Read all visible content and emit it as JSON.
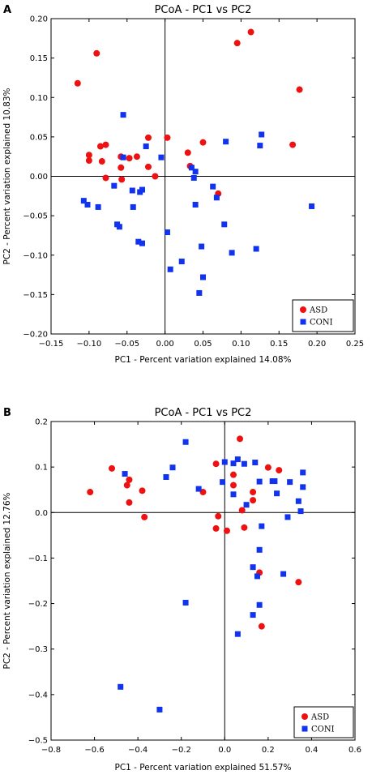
{
  "chart_data": [
    {
      "panel": "A",
      "type": "scatter",
      "title": "PCoA - PC1 vs PC2",
      "xlabel": "PC1 - Percent variation explained 14.08%",
      "ylabel": "PC2 - Percent variation explained 10.83%",
      "xlim": [
        -0.15,
        0.25
      ],
      "ylim": [
        -0.2,
        0.2
      ],
      "xticks": [
        "−0.15",
        "−0.10",
        "−0.05",
        "0.00",
        "0.05",
        "0.10",
        "0.15",
        "0.20",
        "0.25"
      ],
      "yticks": [
        "0.20",
        "0.15",
        "0.10",
        "0.05",
        "0.00",
        "−0.05",
        "−0.10",
        "−0.15",
        "−0.20"
      ],
      "legend_position": "bottom-right",
      "series": [
        {
          "name": "ASD",
          "marker": "circle",
          "color": "#ee1111",
          "points": [
            [
              -0.115,
              0.118
            ],
            [
              -0.09,
              0.156
            ],
            [
              -0.1,
              0.027
            ],
            [
              -0.1,
              0.02
            ],
            [
              -0.085,
              0.038
            ],
            [
              -0.078,
              0.04
            ],
            [
              -0.083,
              0.019
            ],
            [
              -0.078,
              -0.002
            ],
            [
              -0.058,
              0.025
            ],
            [
              -0.058,
              0.011
            ],
            [
              -0.057,
              -0.004
            ],
            [
              -0.047,
              0.023
            ],
            [
              -0.037,
              0.025
            ],
            [
              -0.022,
              0.049
            ],
            [
              -0.022,
              0.012
            ],
            [
              -0.013,
              0.0
            ],
            [
              0.003,
              0.049
            ],
            [
              0.03,
              0.03
            ],
            [
              0.033,
              0.013
            ],
            [
              0.05,
              0.043
            ],
            [
              0.07,
              -0.022
            ],
            [
              0.095,
              0.169
            ],
            [
              0.113,
              0.183
            ],
            [
              0.168,
              0.04
            ],
            [
              0.177,
              0.11
            ]
          ]
        },
        {
          "name": "CONI",
          "marker": "square",
          "color": "#1133ee",
          "points": [
            [
              -0.107,
              -0.031
            ],
            [
              -0.102,
              -0.036
            ],
            [
              -0.088,
              -0.039
            ],
            [
              -0.067,
              -0.012
            ],
            [
              -0.063,
              -0.061
            ],
            [
              -0.06,
              -0.064
            ],
            [
              -0.055,
              0.078
            ],
            [
              -0.055,
              0.024
            ],
            [
              -0.043,
              -0.018
            ],
            [
              -0.042,
              -0.039
            ],
            [
              -0.033,
              -0.02
            ],
            [
              -0.03,
              -0.017
            ],
            [
              -0.035,
              -0.083
            ],
            [
              -0.03,
              -0.085
            ],
            [
              -0.025,
              0.038
            ],
            [
              -0.005,
              0.024
            ],
            [
              0.003,
              -0.071
            ],
            [
              0.007,
              -0.118
            ],
            [
              0.022,
              -0.108
            ],
            [
              0.035,
              0.011
            ],
            [
              0.038,
              -0.002
            ],
            [
              0.04,
              0.006
            ],
            [
              0.04,
              -0.036
            ],
            [
              0.045,
              -0.148
            ],
            [
              0.048,
              -0.089
            ],
            [
              0.05,
              -0.128
            ],
            [
              0.063,
              -0.013
            ],
            [
              0.068,
              -0.027
            ],
            [
              0.078,
              -0.061
            ],
            [
              0.08,
              0.044
            ],
            [
              0.088,
              -0.097
            ],
            [
              0.12,
              -0.092
            ],
            [
              0.125,
              0.039
            ],
            [
              0.127,
              0.053
            ],
            [
              0.193,
              -0.038
            ]
          ]
        }
      ]
    },
    {
      "panel": "B",
      "type": "scatter",
      "title": "PCoA - PC1 vs PC2",
      "xlabel": "PC1 - Percent variation explained 51.57%",
      "ylabel": "PC2 - Percent variation explained 12.76%",
      "xlim": [
        -0.8,
        0.6
      ],
      "ylim": [
        -0.5,
        0.2
      ],
      "xticks": [
        "−0.8",
        "−0.6",
        "−0.4",
        "−0.2",
        "0.0",
        "0.2",
        "0.4",
        "0.6"
      ],
      "yticks": [
        "0.2",
        "0.1",
        "0.0",
        "−0.1",
        "−0.2",
        "−0.3",
        "−0.4",
        "−0.5"
      ],
      "legend_position": "bottom-right",
      "series": [
        {
          "name": "ASD",
          "marker": "circle",
          "color": "#ee1111",
          "points": [
            [
              -0.62,
              0.045
            ],
            [
              -0.52,
              0.097
            ],
            [
              -0.45,
              0.06
            ],
            [
              -0.44,
              0.072
            ],
            [
              -0.44,
              0.022
            ],
            [
              -0.38,
              0.048
            ],
            [
              -0.37,
              -0.01
            ],
            [
              -0.1,
              0.045
            ],
            [
              -0.04,
              0.107
            ],
            [
              -0.03,
              -0.008
            ],
            [
              -0.04,
              -0.035
            ],
            [
              0.01,
              -0.04
            ],
            [
              0.04,
              0.083
            ],
            [
              0.04,
              0.06
            ],
            [
              0.07,
              0.162
            ],
            [
              0.08,
              0.005
            ],
            [
              0.09,
              -0.033
            ],
            [
              0.13,
              0.045
            ],
            [
              0.13,
              0.027
            ],
            [
              0.16,
              -0.132
            ],
            [
              0.17,
              -0.25
            ],
            [
              0.2,
              0.099
            ],
            [
              0.25,
              0.093
            ],
            [
              0.34,
              -0.153
            ]
          ]
        },
        {
          "name": "CONI",
          "marker": "square",
          "color": "#1133ee",
          "points": [
            [
              -0.46,
              0.085
            ],
            [
              -0.48,
              -0.383
            ],
            [
              -0.3,
              -0.433
            ],
            [
              -0.27,
              0.078
            ],
            [
              -0.24,
              0.099
            ],
            [
              -0.18,
              0.155
            ],
            [
              -0.18,
              -0.198
            ],
            [
              -0.12,
              0.052
            ],
            [
              -0.01,
              0.067
            ],
            [
              0.0,
              0.111
            ],
            [
              0.04,
              0.108
            ],
            [
              0.04,
              0.04
            ],
            [
              0.06,
              0.117
            ],
            [
              0.06,
              -0.267
            ],
            [
              0.09,
              0.107
            ],
            [
              0.1,
              0.017
            ],
            [
              0.13,
              -0.12
            ],
            [
              0.14,
              0.11
            ],
            [
              0.13,
              -0.225
            ],
            [
              0.15,
              -0.14
            ],
            [
              0.16,
              0.068
            ],
            [
              0.16,
              -0.082
            ],
            [
              0.16,
              -0.203
            ],
            [
              0.17,
              -0.03
            ],
            [
              0.22,
              0.069
            ],
            [
              0.23,
              0.069
            ],
            [
              0.24,
              0.042
            ],
            [
              0.27,
              -0.135
            ],
            [
              0.29,
              -0.01
            ],
            [
              0.3,
              0.067
            ],
            [
              0.34,
              0.025
            ],
            [
              0.35,
              0.003
            ],
            [
              0.36,
              0.088
            ],
            [
              0.36,
              0.056
            ]
          ]
        }
      ]
    }
  ]
}
